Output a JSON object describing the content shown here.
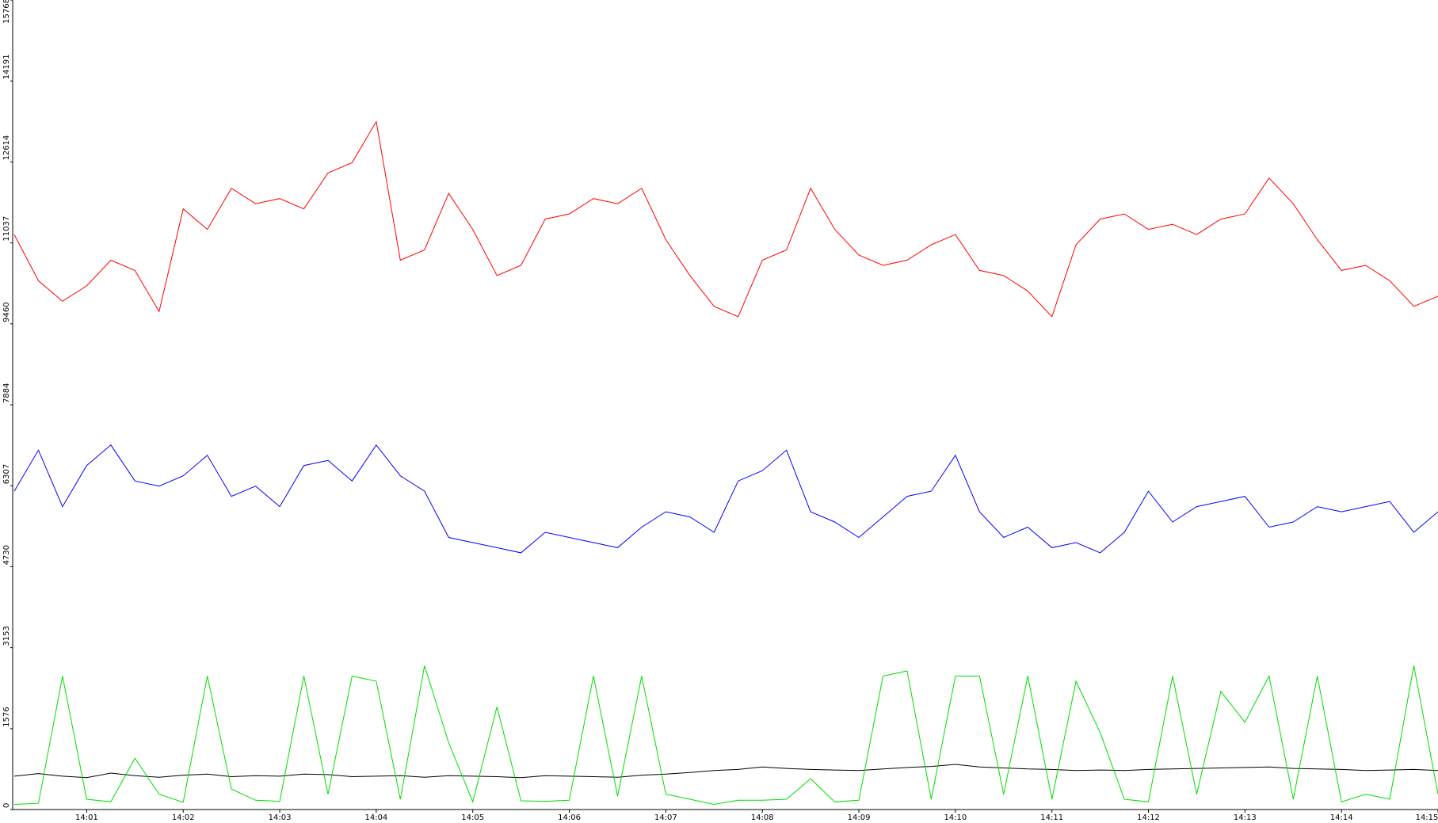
{
  "chart_data": {
    "type": "line",
    "title": "",
    "xlabel": "",
    "ylabel": "",
    "ylim": [
      0,
      15768
    ],
    "y_ticks": [
      0,
      1576,
      3153,
      4730,
      6307,
      7884,
      9460,
      11037,
      12614,
      14191,
      15768
    ],
    "y_tick_labels": [
      "0",
      "1576",
      "3153",
      "4730",
      "6307",
      "7884",
      "9460",
      "11037",
      "12614",
      "14191",
      "15768"
    ],
    "x_range": [
      "14:00:14",
      "14:15:00"
    ],
    "x_tick_labels": [
      "14:01",
      "14:02",
      "14:03",
      "14:04",
      "14:05",
      "14:06",
      "14:07",
      "14:08",
      "14:09",
      "14:10",
      "14:11",
      "14:12",
      "14:13",
      "14:14",
      "14:15"
    ],
    "grid": false,
    "legend": "none",
    "series": [
      {
        "color": "#ff0000",
        "x": [
          "14:00:15",
          "14:00:30",
          "14:00:45",
          "14:01:00",
          "14:01:15",
          "14:01:30",
          "14:01:45",
          "14:02:00",
          "14:02:15",
          "14:02:30",
          "14:02:45",
          "14:03:00",
          "14:03:15",
          "14:03:30",
          "14:03:45",
          "14:04:00",
          "14:04:15",
          "14:04:30",
          "14:04:45",
          "14:05:00",
          "14:05:15",
          "14:05:30",
          "14:05:45",
          "14:06:00",
          "14:06:15",
          "14:06:30",
          "14:06:45",
          "14:07:00",
          "14:07:15",
          "14:07:30",
          "14:07:45",
          "14:08:00",
          "14:08:15",
          "14:08:30",
          "14:08:45",
          "14:09:00",
          "14:09:15",
          "14:09:30",
          "14:09:45",
          "14:10:00",
          "14:10:15",
          "14:10:30",
          "14:10:45",
          "14:11:00",
          "14:11:15",
          "14:11:30",
          "14:11:45",
          "14:12:00",
          "14:12:15",
          "14:12:30",
          "14:12:45",
          "14:13:00",
          "14:13:15",
          "14:13:30",
          "14:13:45",
          "14:14:00",
          "14:14:15",
          "14:14:30",
          "14:14:45",
          "14:15:00"
        ],
        "values": [
          11200,
          10300,
          9900,
          10200,
          10700,
          10500,
          9700,
          11700,
          11300,
          12100,
          11800,
          11900,
          11700,
          12400,
          12600,
          13400,
          10700,
          10900,
          12000,
          11300,
          10400,
          10600,
          11500,
          11600,
          11900,
          11800,
          12100,
          11100,
          10400,
          9800,
          9600,
          10700,
          10900,
          12100,
          11300,
          10800,
          10600,
          10700,
          11000,
          11200,
          10500,
          10400,
          10100,
          9600,
          11000,
          11500,
          11600,
          11300,
          11400,
          11200,
          11500,
          11600,
          12300,
          11800,
          11100,
          10500,
          10600,
          10300,
          9800,
          10000
        ]
      },
      {
        "color": "#0000ff",
        "x": [
          "14:00:15",
          "14:00:30",
          "14:00:45",
          "14:01:00",
          "14:01:15",
          "14:01:30",
          "14:01:45",
          "14:02:00",
          "14:02:15",
          "14:02:30",
          "14:02:45",
          "14:03:00",
          "14:03:15",
          "14:03:30",
          "14:03:45",
          "14:04:00",
          "14:04:15",
          "14:04:30",
          "14:04:45",
          "14:05:00",
          "14:05:15",
          "14:05:30",
          "14:05:45",
          "14:06:00",
          "14:06:15",
          "14:06:30",
          "14:06:45",
          "14:07:00",
          "14:07:15",
          "14:07:30",
          "14:07:45",
          "14:08:00",
          "14:08:15",
          "14:08:30",
          "14:08:45",
          "14:09:00",
          "14:09:15",
          "14:09:30",
          "14:09:45",
          "14:10:00",
          "14:10:15",
          "14:10:30",
          "14:10:45",
          "14:11:00",
          "14:11:15",
          "14:11:30",
          "14:11:45",
          "14:12:00",
          "14:12:15",
          "14:12:30",
          "14:12:45",
          "14:13:00",
          "14:13:15",
          "14:13:30",
          "14:13:45",
          "14:14:00",
          "14:14:15",
          "14:14:30",
          "14:14:45",
          "14:15:00"
        ],
        "values": [
          6200,
          7000,
          5900,
          6700,
          7100,
          6400,
          6300,
          6500,
          6900,
          6100,
          6300,
          5900,
          6700,
          6800,
          6400,
          7100,
          6500,
          6200,
          5300,
          5200,
          5100,
          5000,
          5400,
          5300,
          5200,
          5100,
          5500,
          5800,
          5700,
          5400,
          6400,
          6600,
          7000,
          5800,
          5600,
          5300,
          5700,
          6100,
          6200,
          6900,
          5800,
          5300,
          5500,
          5100,
          5200,
          5000,
          5400,
          6200,
          5600,
          5900,
          6000,
          6100,
          5500,
          5600,
          5900,
          5800,
          5900,
          6000,
          5400,
          5800
        ]
      },
      {
        "color": "#000000",
        "x": [
          "14:00:15",
          "14:00:30",
          "14:00:45",
          "14:01:00",
          "14:01:15",
          "14:01:30",
          "14:01:45",
          "14:02:00",
          "14:02:15",
          "14:02:30",
          "14:02:45",
          "14:03:00",
          "14:03:15",
          "14:03:30",
          "14:03:45",
          "14:04:00",
          "14:04:15",
          "14:04:30",
          "14:04:45",
          "14:05:00",
          "14:05:15",
          "14:05:30",
          "14:05:45",
          "14:06:00",
          "14:06:15",
          "14:06:30",
          "14:06:45",
          "14:07:00",
          "14:07:15",
          "14:07:30",
          "14:07:45",
          "14:08:00",
          "14:08:15",
          "14:08:30",
          "14:08:45",
          "14:09:00",
          "14:09:15",
          "14:09:30",
          "14:09:45",
          "14:10:00",
          "14:10:15",
          "14:10:30",
          "14:10:45",
          "14:11:00",
          "14:11:15",
          "14:11:30",
          "14:11:45",
          "14:12:00",
          "14:12:15",
          "14:12:30",
          "14:12:45",
          "14:13:00",
          "14:13:15",
          "14:13:30",
          "14:13:45",
          "14:14:00",
          "14:14:15",
          "14:14:30",
          "14:14:45",
          "14:15:00"
        ],
        "values": [
          650,
          700,
          650,
          620,
          710,
          660,
          630,
          670,
          690,
          640,
          660,
          650,
          690,
          680,
          640,
          650,
          660,
          630,
          660,
          650,
          640,
          620,
          660,
          650,
          640,
          630,
          670,
          690,
          720,
          760,
          780,
          830,
          800,
          780,
          770,
          760,
          790,
          820,
          840,
          880,
          830,
          810,
          790,
          780,
          760,
          770,
          760,
          780,
          790,
          800,
          810,
          820,
          830,
          800,
          790,
          780,
          760,
          770,
          780,
          760
        ]
      },
      {
        "color": "#00dd00",
        "x": [
          "14:00:15",
          "14:00:30",
          "14:00:45",
          "14:01:00",
          "14:01:15",
          "14:01:30",
          "14:01:45",
          "14:02:00",
          "14:02:15",
          "14:02:30",
          "14:02:45",
          "14:03:00",
          "14:03:15",
          "14:03:30",
          "14:03:45",
          "14:04:00",
          "14:04:15",
          "14:04:30",
          "14:04:45",
          "14:05:00",
          "14:05:15",
          "14:05:30",
          "14:05:45",
          "14:06:00",
          "14:06:15",
          "14:06:30",
          "14:06:45",
          "14:07:00",
          "14:07:15",
          "14:07:30",
          "14:07:45",
          "14:08:00",
          "14:08:15",
          "14:08:30",
          "14:08:45",
          "14:09:00",
          "14:09:15",
          "14:09:30",
          "14:09:45",
          "14:10:00",
          "14:10:15",
          "14:10:30",
          "14:10:45",
          "14:11:00",
          "14:11:15",
          "14:11:30",
          "14:11:45",
          "14:12:00",
          "14:12:15",
          "14:12:30",
          "14:12:45",
          "14:13:00",
          "14:13:15",
          "14:13:30",
          "14:13:45",
          "14:14:00",
          "14:14:15",
          "14:14:30",
          "14:14:45",
          "14:15:00"
        ],
        "values": [
          100,
          120,
          2600,
          200,
          150,
          1000,
          300,
          140,
          2600,
          400,
          180,
          160,
          2600,
          300,
          2600,
          2500,
          200,
          2800,
          1300,
          150,
          2000,
          170,
          160,
          180,
          2600,
          260,
          2600,
          300,
          200,
          100,
          180,
          180,
          200,
          600,
          150,
          180,
          2600,
          2700,
          200,
          2600,
          2600,
          300,
          2600,
          200,
          2500,
          1500,
          200,
          150,
          2600,
          300,
          2300,
          1700,
          2600,
          200,
          2600,
          150,
          300,
          200,
          2800,
          300
        ]
      }
    ]
  }
}
